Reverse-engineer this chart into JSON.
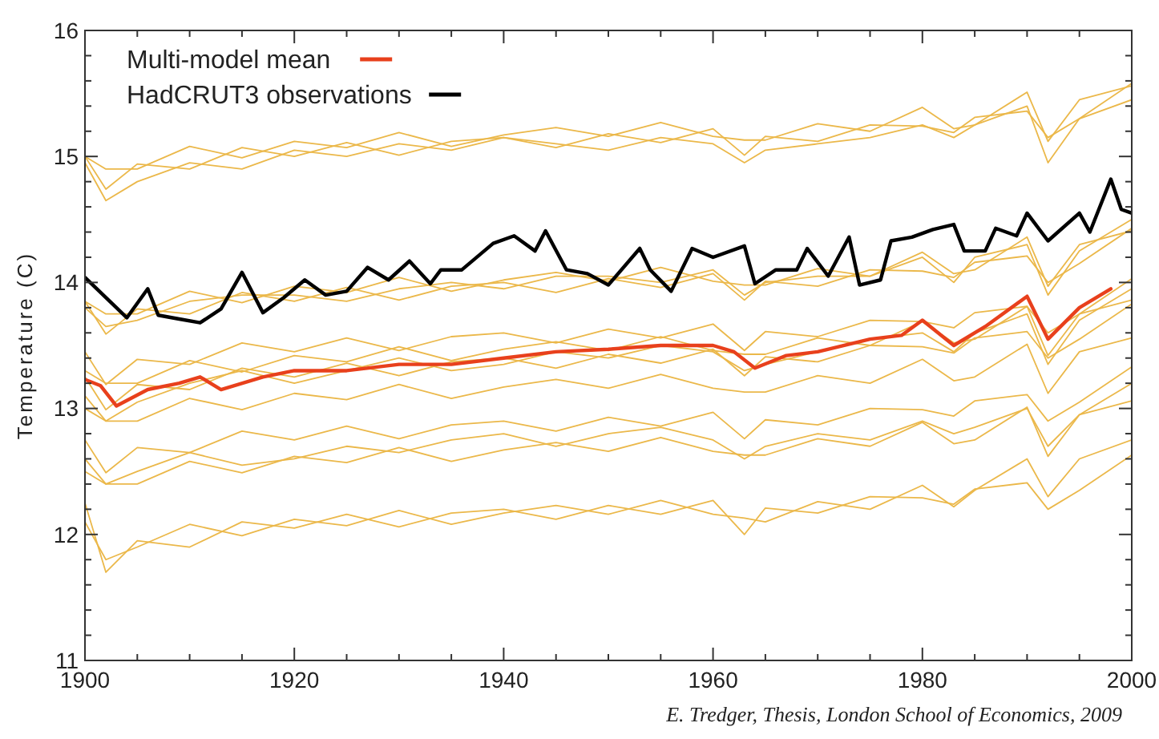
{
  "chart_data": {
    "type": "line",
    "ylabel": "Temperature (C)",
    "annotations": [
      "E. Tredger, Thesis, London School of Economics, 2009"
    ],
    "x": [
      1900,
      1902,
      1905,
      1910,
      1915,
      1920,
      1925,
      1930,
      1935,
      1940,
      1945,
      1950,
      1955,
      1960,
      1963,
      1965,
      1970,
      1975,
      1980,
      1983,
      1985,
      1990,
      1992,
      1995,
      2000
    ],
    "xlim": [
      1900,
      2000
    ],
    "xticks": [
      1900,
      {
        "value": 1905,
        "label": null
      },
      {
        "value": 1910,
        "label": null
      },
      {
        "value": 1915,
        "label": null
      },
      1920,
      {
        "value": 1925,
        "label": null
      },
      {
        "value": 1930,
        "label": null
      },
      {
        "value": 1935,
        "label": null
      },
      1940,
      {
        "value": 1945,
        "label": null
      },
      {
        "value": 1950,
        "label": null
      },
      {
        "value": 1955,
        "label": null
      },
      1960,
      {
        "value": 1965,
        "label": null
      },
      {
        "value": 1970,
        "label": null
      },
      {
        "value": 1975,
        "label": null
      },
      1980,
      {
        "value": 1985,
        "label": null
      },
      {
        "value": 1990,
        "label": null
      },
      {
        "value": 1995,
        "label": null
      },
      2000
    ],
    "ylim": [
      11,
      16
    ],
    "yticks": [
      11,
      {
        "value": 11.2,
        "label": null
      },
      {
        "value": 11.4,
        "label": null
      },
      {
        "value": 11.6,
        "label": null
      },
      {
        "value": 11.8,
        "label": null
      },
      12,
      {
        "value": 12.2,
        "label": null
      },
      {
        "value": 12.4,
        "label": null
      },
      {
        "value": 12.6,
        "label": null
      },
      {
        "value": 12.8,
        "label": null
      },
      13,
      {
        "value": 13.2,
        "label": null
      },
      {
        "value": 13.4,
        "label": null
      },
      {
        "value": 13.6,
        "label": null
      },
      {
        "value": 13.8,
        "label": null
      },
      14,
      {
        "value": 14.2,
        "label": null
      },
      {
        "value": 14.4,
        "label": null
      },
      {
        "value": 14.6,
        "label": null
      },
      {
        "value": 14.8,
        "label": null
      },
      15,
      {
        "value": 15.2,
        "label": null
      },
      {
        "value": 15.4,
        "label": null
      },
      {
        "value": 15.6,
        "label": null
      },
      {
        "value": 15.8,
        "label": null
      },
      16
    ],
    "grid": false,
    "legend": "top left",
    "line_style": "solid",
    "marker": "none",
    "series": [
      {
        "color": "#ebb84a",
        "values": [
          15.0,
          14.9,
          14.9,
          15.08,
          14.99,
          15.12,
          15.07,
          15.19,
          15.08,
          15.17,
          15.23,
          15.16,
          15.27,
          15.16,
          15.13,
          15.13,
          15.26,
          15.2,
          15.39,
          15.22,
          15.25,
          15.51,
          15.12,
          15.45,
          15.56
        ]
      },
      {
        "color": "#ebb84a",
        "values": [
          15.0,
          14.74,
          14.94,
          14.9,
          15.07,
          15.0,
          15.11,
          15.01,
          15.12,
          15.15,
          15.07,
          15.18,
          15.11,
          15.22,
          15.01,
          15.16,
          15.12,
          15.25,
          15.24,
          15.19,
          15.31,
          15.36,
          15.15,
          15.3,
          15.58
        ]
      },
      {
        "color": "#ebb84a",
        "values": [
          14.95,
          14.65,
          14.8,
          14.95,
          14.9,
          15.05,
          15.0,
          15.1,
          15.05,
          15.15,
          15.1,
          15.05,
          15.15,
          15.1,
          14.95,
          15.05,
          15.1,
          15.15,
          15.25,
          15.15,
          15.25,
          15.4,
          14.95,
          15.3,
          15.45
        ]
      },
      {
        "color": "#ebb84a",
        "values": [
          13.85,
          13.75,
          13.75,
          13.93,
          13.84,
          13.97,
          13.92,
          14.04,
          13.93,
          14.02,
          14.08,
          14.01,
          14.12,
          14.01,
          13.98,
          13.98,
          14.11,
          14.05,
          14.24,
          14.07,
          14.1,
          14.36,
          13.97,
          14.3,
          14.41
        ]
      },
      {
        "color": "#ebb84a",
        "values": [
          13.85,
          13.59,
          13.79,
          13.75,
          13.92,
          13.85,
          13.96,
          13.86,
          13.97,
          14.0,
          13.92,
          14.03,
          13.96,
          14.07,
          13.86,
          14.01,
          13.97,
          14.1,
          14.09,
          14.04,
          14.16,
          14.21,
          14.0,
          14.15,
          14.43
        ]
      },
      {
        "color": "#ebb84a",
        "values": [
          13.8,
          13.65,
          13.7,
          13.85,
          13.9,
          13.9,
          13.85,
          13.95,
          14.0,
          13.95,
          14.05,
          14.05,
          14.0,
          14.1,
          13.9,
          14.0,
          14.05,
          14.05,
          14.2,
          14.0,
          14.2,
          14.3,
          13.9,
          14.25,
          14.5
        ]
      },
      {
        "color": "#ebb84a",
        "values": [
          13.3,
          13.2,
          13.2,
          13.38,
          13.29,
          13.42,
          13.37,
          13.49,
          13.38,
          13.47,
          13.53,
          13.46,
          13.57,
          13.46,
          13.43,
          13.43,
          13.56,
          13.5,
          13.69,
          13.52,
          13.55,
          13.81,
          13.42,
          13.75,
          13.86
        ]
      },
      {
        "color": "#ebb84a",
        "values": [
          13.25,
          12.99,
          13.19,
          13.15,
          13.32,
          13.25,
          13.36,
          13.26,
          13.37,
          13.4,
          13.32,
          13.43,
          13.36,
          13.47,
          13.26,
          13.41,
          13.37,
          13.5,
          13.49,
          13.44,
          13.56,
          13.61,
          13.4,
          13.55,
          13.83
        ]
      },
      {
        "color": "#ebb84a",
        "values": [
          13.1,
          12.9,
          13.05,
          13.2,
          13.3,
          13.2,
          13.3,
          13.4,
          13.3,
          13.35,
          13.45,
          13.4,
          13.5,
          13.45,
          13.3,
          13.35,
          13.45,
          13.55,
          13.6,
          13.45,
          13.6,
          13.75,
          13.35,
          13.7,
          13.95
        ]
      },
      {
        "color": "#ebb84a",
        "values": [
          13.45,
          13.19,
          13.39,
          13.35,
          13.52,
          13.45,
          13.56,
          13.46,
          13.57,
          13.6,
          13.52,
          13.63,
          13.56,
          13.67,
          13.46,
          13.61,
          13.57,
          13.7,
          13.69,
          13.64,
          13.76,
          13.81,
          13.6,
          13.75,
          14.03
        ]
      },
      {
        "color": "#ebb84a",
        "values": [
          13.0,
          12.9,
          12.9,
          13.08,
          12.99,
          13.12,
          13.07,
          13.19,
          13.08,
          13.17,
          13.23,
          13.16,
          13.27,
          13.16,
          13.13,
          13.13,
          13.26,
          13.2,
          13.39,
          13.22,
          13.25,
          13.51,
          13.12,
          13.45,
          13.56
        ]
      },
      {
        "color": "#ebb84a",
        "values": [
          12.75,
          12.49,
          12.69,
          12.65,
          12.82,
          12.75,
          12.86,
          12.76,
          12.87,
          12.9,
          12.82,
          12.93,
          12.86,
          12.97,
          12.76,
          12.91,
          12.87,
          13.0,
          12.99,
          12.94,
          13.06,
          13.11,
          12.9,
          13.05,
          13.33
        ]
      },
      {
        "color": "#ebb84a",
        "values": [
          12.5,
          12.4,
          12.4,
          12.58,
          12.49,
          12.62,
          12.57,
          12.69,
          12.58,
          12.67,
          12.73,
          12.66,
          12.77,
          12.66,
          12.63,
          12.63,
          12.76,
          12.7,
          12.89,
          12.72,
          12.75,
          13.01,
          12.62,
          12.95,
          13.06
        ]
      },
      {
        "color": "#ebb84a",
        "values": [
          12.6,
          12.4,
          12.5,
          12.65,
          12.55,
          12.6,
          12.7,
          12.65,
          12.75,
          12.8,
          12.7,
          12.8,
          12.85,
          12.75,
          12.6,
          12.7,
          12.8,
          12.75,
          12.9,
          12.8,
          12.85,
          13.0,
          12.7,
          12.95,
          13.2
        ]
      },
      {
        "color": "#ebb84a",
        "values": [
          12.1,
          11.8,
          11.9,
          12.08,
          11.99,
          12.12,
          12.07,
          12.19,
          12.08,
          12.17,
          12.23,
          12.16,
          12.27,
          12.16,
          12.13,
          12.1,
          12.26,
          12.2,
          12.39,
          12.22,
          12.35,
          12.6,
          12.3,
          12.6,
          12.75
        ]
      },
      {
        "color": "#ebb84a",
        "values": [
          12.25,
          11.7,
          11.95,
          11.9,
          12.1,
          12.05,
          12.16,
          12.06,
          12.17,
          12.2,
          12.12,
          12.23,
          12.16,
          12.27,
          12.0,
          12.21,
          12.17,
          12.3,
          12.29,
          12.24,
          12.36,
          12.41,
          12.2,
          12.35,
          12.63
        ]
      },
      {
        "name": "Multi-model mean",
        "color": "#e8401c",
        "x": [
          1900,
          1901.5,
          1903,
          1906,
          1909,
          1911,
          1913,
          1917,
          1920,
          1925,
          1930,
          1935,
          1940,
          1945,
          1950,
          1955,
          1960,
          1962,
          1964,
          1967,
          1970,
          1975,
          1978,
          1980,
          1983,
          1986,
          1990,
          1992,
          1995,
          1998
        ],
        "values": [
          13.23,
          13.18,
          13.02,
          13.15,
          13.2,
          13.25,
          13.15,
          13.25,
          13.3,
          13.3,
          13.35,
          13.35,
          13.4,
          13.45,
          13.47,
          13.5,
          13.5,
          13.45,
          13.32,
          13.42,
          13.45,
          13.55,
          13.58,
          13.7,
          13.5,
          13.65,
          13.89,
          13.55,
          13.8,
          13.95
        ]
      },
      {
        "name": "HadCRUT3 observations",
        "color": "#000000",
        "x": [
          1900,
          1904,
          1906,
          1907,
          1909,
          1911,
          1913,
          1915,
          1917,
          1919,
          1921,
          1923,
          1925,
          1927,
          1929,
          1931,
          1933,
          1934,
          1936,
          1939,
          1941,
          1943,
          1944,
          1946,
          1948,
          1950,
          1953,
          1954,
          1956,
          1958,
          1960,
          1963,
          1964,
          1966,
          1968,
          1969,
          1971,
          1973,
          1974,
          1976,
          1977,
          1979,
          1981,
          1983,
          1984,
          1986,
          1987,
          1989,
          1990,
          1992,
          1995,
          1996,
          1998,
          1999,
          2000
        ],
        "values": [
          14.04,
          13.72,
          13.95,
          13.74,
          13.71,
          13.68,
          13.79,
          14.08,
          13.76,
          13.88,
          14.02,
          13.9,
          13.93,
          14.12,
          14.02,
          14.17,
          13.99,
          14.1,
          14.1,
          14.31,
          14.37,
          14.25,
          14.41,
          14.1,
          14.07,
          13.98,
          14.27,
          14.1,
          13.93,
          14.27,
          14.2,
          14.29,
          13.99,
          14.1,
          14.1,
          14.27,
          14.05,
          14.36,
          13.98,
          14.02,
          14.33,
          14.36,
          14.42,
          14.46,
          14.25,
          14.25,
          14.43,
          14.37,
          14.55,
          14.33,
          14.55,
          14.4,
          14.82,
          14.58,
          14.55
        ]
      }
    ]
  }
}
